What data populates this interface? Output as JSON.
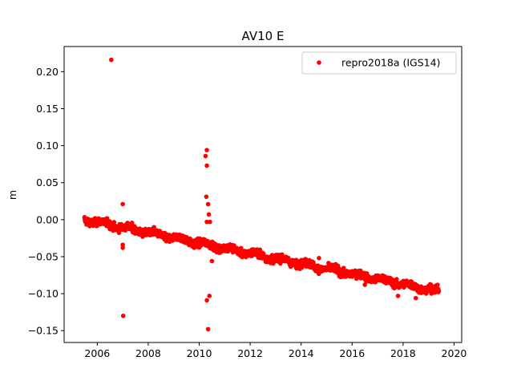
{
  "chart_data": {
    "type": "scatter",
    "title": "AV10 E",
    "xlabel": "",
    "ylabel": "m",
    "xlim": [
      2004.7,
      2020.3
    ],
    "ylim": [
      -0.166,
      0.234
    ],
    "xticks": [
      2006,
      2008,
      2010,
      2012,
      2014,
      2016,
      2018,
      2020
    ],
    "yticks": [
      -0.15,
      -0.1,
      -0.05,
      0.0,
      0.05,
      0.1,
      0.15,
      0.2
    ],
    "xtick_labels": [
      "2006",
      "2008",
      "2010",
      "2012",
      "2014",
      "2016",
      "2018",
      "2020"
    ],
    "ytick_labels": [
      "−0.15",
      "−0.10",
      "−0.05",
      "0.00",
      "0.05",
      "0.10",
      "0.15",
      "0.20"
    ],
    "grid": false,
    "legend_position": "top-right",
    "series": [
      {
        "name": "repro2018a (IGS14)",
        "color": "#ff0000",
        "marker": "circle",
        "trend": {
          "start": [
            2005.5,
            0.0
          ],
          "end": [
            2019.4,
            -0.097
          ],
          "scatter": 0.0035
        },
        "outliers": [
          [
            2006.55,
            0.216
          ],
          [
            2007.0,
            0.021
          ],
          [
            2007.0,
            -0.034
          ],
          [
            2007.0,
            -0.038
          ],
          [
            2007.02,
            -0.13
          ],
          [
            2010.3,
            0.094
          ],
          [
            2010.25,
            0.086
          ],
          [
            2010.3,
            0.073
          ],
          [
            2010.28,
            0.031
          ],
          [
            2010.35,
            0.021
          ],
          [
            2010.38,
            0.007
          ],
          [
            2010.3,
            -0.003
          ],
          [
            2010.42,
            -0.003
          ],
          [
            2010.3,
            -0.109
          ],
          [
            2010.4,
            -0.103
          ],
          [
            2010.35,
            -0.148
          ],
          [
            2009.8,
            -0.038
          ],
          [
            2010.5,
            -0.056
          ],
          [
            2014.7,
            -0.052
          ],
          [
            2016.5,
            -0.088
          ],
          [
            2017.8,
            -0.103
          ],
          [
            2018.5,
            -0.106
          ]
        ]
      }
    ]
  }
}
